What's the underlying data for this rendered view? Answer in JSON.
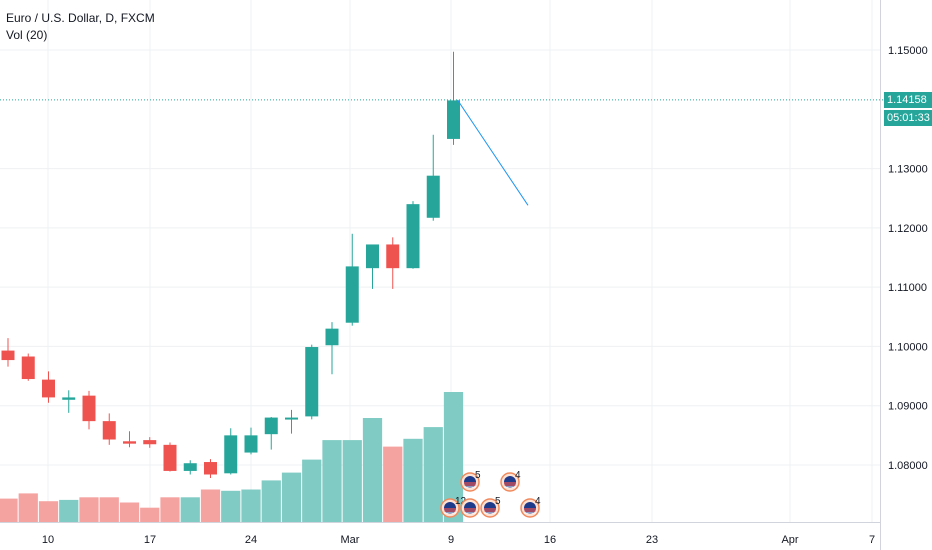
{
  "legend": {
    "symbol_line": "Euro / U.S. Dollar, D, FXCM",
    "volume_line": "Vol (20)"
  },
  "price_tag": {
    "price": "1.14158",
    "countdown": "05:01:33",
    "color": "#26a69a"
  },
  "colors": {
    "up": "#26a69a",
    "down": "#ef5350",
    "up_volume": "#80cbc4",
    "down_volume": "#f5a3a1",
    "grid": "#eef0f3",
    "axis_text": "#131722",
    "drawing_line": "#2196f3"
  },
  "chart_data": {
    "type": "candlestick",
    "title": "Euro / U.S. Dollar, D, FXCM",
    "x_ticks": [
      "10",
      "17",
      "24",
      "Mar",
      "9",
      "16",
      "23",
      "Apr",
      "7"
    ],
    "y_ticks": [
      "1.15000",
      "1.13000",
      "1.12000",
      "1.11000",
      "1.10000",
      "1.09000",
      "1.08000"
    ],
    "ylim": [
      1.0725,
      1.158
    ],
    "last_price": 1.14158,
    "candles": [
      {
        "o": 1.0993,
        "h": 1.1014,
        "l": 1.0966,
        "c": 1.0977,
        "v": 0.18
      },
      {
        "o": 1.0983,
        "h": 1.0988,
        "l": 1.0942,
        "c": 1.0945,
        "v": 0.22
      },
      {
        "o": 1.0944,
        "h": 1.0958,
        "l": 1.0905,
        "c": 1.0914,
        "v": 0.16
      },
      {
        "o": 1.091,
        "h": 1.0926,
        "l": 1.0888,
        "c": 1.0914,
        "v": 0.17
      },
      {
        "o": 1.0917,
        "h": 1.0925,
        "l": 1.086,
        "c": 1.0874,
        "v": 0.19
      },
      {
        "o": 1.0874,
        "h": 1.0887,
        "l": 1.0834,
        "c": 1.0843,
        "v": 0.19
      },
      {
        "o": 1.084,
        "h": 1.0857,
        "l": 1.083,
        "c": 1.0836,
        "v": 0.15
      },
      {
        "o": 1.0842,
        "h": 1.0847,
        "l": 1.0829,
        "c": 1.0835,
        "v": 0.11
      },
      {
        "o": 1.0834,
        "h": 1.0838,
        "l": 1.0789,
        "c": 1.079,
        "v": 0.19
      },
      {
        "o": 1.079,
        "h": 1.0808,
        "l": 1.0784,
        "c": 1.0803,
        "v": 0.19
      },
      {
        "o": 1.0805,
        "h": 1.081,
        "l": 1.0778,
        "c": 1.0784,
        "v": 0.25
      },
      {
        "o": 1.0786,
        "h": 1.0862,
        "l": 1.0784,
        "c": 1.085,
        "v": 0.24
      },
      {
        "o": 1.0821,
        "h": 1.0863,
        "l": 1.0818,
        "c": 1.085,
        "v": 0.25
      },
      {
        "o": 1.0852,
        "h": 1.0881,
        "l": 1.0826,
        "c": 1.088,
        "v": 0.32
      },
      {
        "o": 1.088,
        "h": 1.0893,
        "l": 1.0853,
        "c": 1.088,
        "v": 0.38
      },
      {
        "o": 1.0882,
        "h": 1.1003,
        "l": 1.0877,
        "c": 1.0999,
        "v": 0.48
      },
      {
        "o": 1.1002,
        "h": 1.1041,
        "l": 1.0953,
        "c": 1.103,
        "v": 0.63
      },
      {
        "o": 1.104,
        "h": 1.119,
        "l": 1.1035,
        "c": 1.1135,
        "v": 0.63
      },
      {
        "o": 1.1132,
        "h": 1.1172,
        "l": 1.1097,
        "c": 1.1172,
        "v": 0.8
      },
      {
        "o": 1.1172,
        "h": 1.1184,
        "l": 1.1097,
        "c": 1.1132,
        "v": 0.58
      },
      {
        "o": 1.1132,
        "h": 1.1245,
        "l": 1.1131,
        "c": 1.124,
        "v": 0.64
      },
      {
        "o": 1.1217,
        "h": 1.1357,
        "l": 1.1212,
        "c": 1.1288,
        "v": 0.73
      },
      {
        "o": 1.135,
        "h": 1.1497,
        "l": 1.134,
        "c": 1.1415,
        "v": 1.0
      }
    ],
    "trend_line": {
      "from_price": 1.14158,
      "to_price": 1.1238
    },
    "event_markers": [
      {
        "label": "5"
      },
      {
        "label": "4"
      },
      {
        "label": "12"
      },
      {
        "label": "5"
      },
      {
        "label": "4"
      }
    ]
  }
}
